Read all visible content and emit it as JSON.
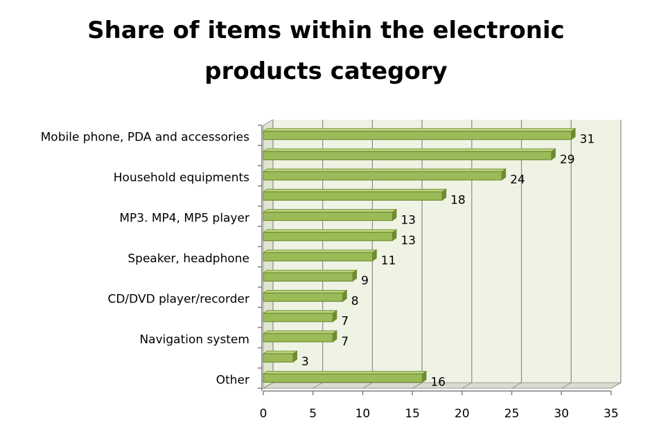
{
  "chart_data": {
    "type": "bar",
    "orientation": "horizontal",
    "title_lines": [
      "Share of items within the electronic",
      "products category"
    ],
    "categories": [
      "Mobile phone, PDA and accessories",
      "",
      "Household equipments",
      "",
      "MP3. MP4, MP5 player",
      "",
      "Speaker, headphone",
      "",
      "CD/DVD player/recorder",
      "",
      "Navigation system",
      "",
      "Other"
    ],
    "values": [
      31,
      29,
      24,
      18,
      13,
      13,
      11,
      9,
      8,
      7,
      7,
      3,
      16
    ],
    "xlim": [
      0,
      35
    ],
    "xticks": [
      0,
      5,
      10,
      15,
      20,
      25,
      30,
      35
    ],
    "grid": true,
    "style": "3d",
    "colors": {
      "bar": "#9bbb59",
      "bar_dark": "#6f8b32",
      "plot_bg": "#eff3e4",
      "grid": "#8a8a8a"
    }
  }
}
